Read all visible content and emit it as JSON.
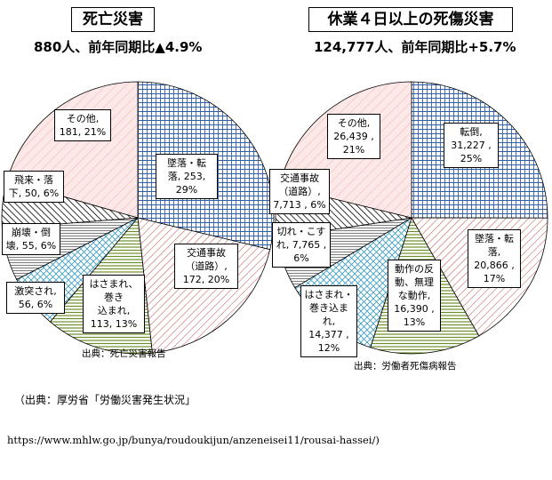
{
  "chart_data": [
    {
      "type": "pie",
      "title": "死亡災害",
      "subtitle": "880人、前年同期比▲4.9%",
      "source": "出典：死亡災害報告",
      "slices": [
        {
          "label": "墜落・転落",
          "value": 253,
          "percent": "29%",
          "text": "墜落・転\n落, 253,\n29%",
          "pattern": "blueGrid"
        },
        {
          "label": "交通事故（道路）",
          "value": 172,
          "percent": "20%",
          "text": "交通事故\n（道路）,\n172, 20%",
          "pattern": "redDiag"
        },
        {
          "label": "はさまれ、巻き込まれ",
          "value": 113,
          "percent": "13%",
          "text": "はさまれ、巻き\n込まれ,\n113, 13%",
          "pattern": "greenHoriz"
        },
        {
          "label": "激突され",
          "value": 56,
          "percent": "6%",
          "text": "激突され,\n56, 6%",
          "pattern": "cyanCross"
        },
        {
          "label": "崩壊・倒壊",
          "value": 55,
          "percent": "6%",
          "text": "崩壊・倒\n壊, 55, 6%",
          "pattern": "grayHoriz"
        },
        {
          "label": "飛来・落下",
          "value": 50,
          "percent": "6%",
          "text": "飛来・落\n下, 50, 6%",
          "pattern": "blackDiag"
        },
        {
          "label": "その他",
          "value": 181,
          "percent": "21%",
          "text": "その他,\n181, 21%",
          "pattern": "pinkDiag"
        }
      ]
    },
    {
      "type": "pie",
      "title": "休業４日以上の死傷災害",
      "subtitle": "124,777人、前年同期比+5.7%",
      "source": "出典：労働者死傷病報告",
      "slices": [
        {
          "label": "転倒",
          "value": 31227,
          "percent": "25%",
          "text": "転倒,\n31,227 ,\n25%",
          "pattern": "blueGrid"
        },
        {
          "label": "墜落・転落",
          "value": 20866,
          "percent": "17%",
          "text": "墜落・転\n落,\n20,866 ,\n17%",
          "pattern": "redDiag"
        },
        {
          "label": "動作の反動、無理な動作",
          "value": 16390,
          "percent": "13%",
          "text": "動作の反\n動、無理\nな動作,\n16,390 ,\n13%",
          "pattern": "greenHoriz"
        },
        {
          "label": "はさまれ・巻き込まれ",
          "value": 14377,
          "percent": "12%",
          "text": "はさまれ・\n巻き込ま\nれ,\n14,377 ,\n12%",
          "pattern": "cyanCross"
        },
        {
          "label": "切れ・こすれ",
          "value": 7765,
          "percent": "6%",
          "text": "切れ・こす\nれ, 7,765 ,\n6%",
          "pattern": "grayHoriz"
        },
        {
          "label": "交通事故（道路）",
          "value": 7713,
          "percent": "6%",
          "text": "交通事故\n（道路）,\n7,713 , 6%",
          "pattern": "blackDiag"
        },
        {
          "label": "その他",
          "value": 26439,
          "percent": "21%",
          "text": "その他,\n26,439 ,\n21%",
          "pattern": "pinkDiag"
        }
      ]
    }
  ],
  "footer": {
    "source_note": "（出典：厚労省「労働災害発生状況」",
    "url": "https://www.mhlw.go.jp/bunya/roudoukijun/anzeneisei11/rousai-hassei/)"
  }
}
